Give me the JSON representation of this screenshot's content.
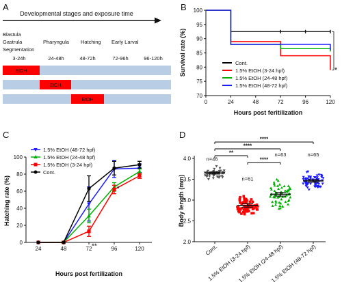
{
  "colors": {
    "control": "#000000",
    "etoh_3_24": "#ff0000",
    "etoh_24_48": "#00b000",
    "etoh_48_72": "#1a1aff",
    "row_band": "#b9cde5",
    "etoh_box": "#ff0000",
    "significance": "#000000",
    "panel_d_control_points": "#555555"
  },
  "panel_a": {
    "letter": "A",
    "arrow_label": "Developmental stages and exposure time",
    "stage_top": "Blastula",
    "stages": [
      "Gastrula",
      "Pharyngula",
      "Hatching",
      "Early Larval"
    ],
    "stage_extra": "Segmentation",
    "time_windows": [
      "3-24h",
      "24-48h",
      "48-72h",
      "72-96h",
      "96-120h"
    ],
    "rows": [
      {
        "etoh_window": 0,
        "label": "EtOH"
      },
      {
        "etoh_window": 1,
        "label": "EtOH"
      },
      {
        "etoh_window": 2,
        "label": "EtOH"
      }
    ]
  },
  "panel_b": {
    "letter": "B",
    "significance": "*",
    "legend": [
      "Cont.",
      "1.5% EtOH (3-24 hpf)",
      "1.5% EtOH (24-48 hpf)",
      "1.5% EtOH (48-72 hpf)"
    ]
  },
  "panel_c": {
    "letter": "C",
    "annotations": [
      {
        "text": "*",
        "x": 96,
        "y": 70
      },
      {
        "text": "**",
        "x": 72,
        "y": 3
      }
    ],
    "legend": [
      "1.5% EtOH (48-72 hpf)",
      "1.5% EtOH (24-48 hpf)",
      "1.5% EtOH (3-24 hpf)",
      "Cont."
    ]
  },
  "panel_d": {
    "letter": "D",
    "n_labels": [
      "n=46",
      "n=61",
      "n=63",
      "n=65"
    ],
    "significance": [
      "****",
      "****",
      "**",
      "****"
    ]
  },
  "chart_data": [
    {
      "panel": "B",
      "type": "line",
      "step": true,
      "xlabel": "Hours post feritilization",
      "ylabel": "Survival rate (%)",
      "xlim": [
        0,
        120
      ],
      "ylim": [
        70,
        100
      ],
      "xticks": [
        0,
        24,
        48,
        72,
        96,
        120
      ],
      "yticks": [
        70,
        75,
        80,
        85,
        90,
        95,
        100
      ],
      "x": [
        0,
        24,
        48,
        72,
        96,
        120
      ],
      "series": [
        {
          "name": "Cont.",
          "color_key": "control",
          "values": [
            100,
            92.5,
            92.5,
            92.5,
            92.5,
            92.5
          ]
        },
        {
          "name": "1.5% EtOH (3-24 hpf)",
          "color_key": "etoh_3_24",
          "values": [
            100,
            89,
            89,
            84,
            84,
            79
          ]
        },
        {
          "name": "1.5% EtOH (24-48 hpf)",
          "color_key": "etoh_24_48",
          "values": [
            100,
            88,
            88,
            86.5,
            86.5,
            85.5
          ]
        },
        {
          "name": "1.5% EtOH (48-72 hpf)",
          "color_key": "etoh_48_72",
          "values": [
            100,
            88,
            88,
            88,
            88,
            86
          ]
        }
      ]
    },
    {
      "panel": "C",
      "type": "line",
      "xlabel": "Hours post fertilization",
      "ylabel": "Hatching rate (%)",
      "ylim": [
        0,
        100
      ],
      "yticks": [
        0,
        20,
        40,
        60,
        80,
        100
      ],
      "categories": [
        "24",
        "48",
        "72",
        "96",
        "120"
      ],
      "series": [
        {
          "name": "1.5% EtOH (48-72 hpf)",
          "color_key": "etoh_48_72",
          "marker": "triangle-down",
          "values": [
            0,
            0,
            45,
            86,
            87
          ],
          "errors": [
            0,
            0,
            20,
            10,
            5
          ]
        },
        {
          "name": "1.5% EtOH (24-48 hpf)",
          "color_key": "etoh_24_48",
          "marker": "triangle-up",
          "values": [
            0,
            0,
            31,
            65,
            83
          ],
          "errors": [
            0,
            1,
            8,
            5,
            3
          ]
        },
        {
          "name": "1.5% EtOH (3-24 hpf)",
          "color_key": "etoh_3_24",
          "marker": "square",
          "values": [
            0,
            0,
            13,
            62,
            78
          ],
          "errors": [
            0,
            0,
            6,
            5,
            3
          ]
        },
        {
          "name": "Cont.",
          "color_key": "control",
          "marker": "circle",
          "values": [
            0,
            0,
            63,
            87,
            91
          ],
          "errors": [
            0,
            0,
            15,
            8,
            4
          ]
        }
      ]
    },
    {
      "panel": "D",
      "type": "scatter",
      "ylabel": "Body length (mm)",
      "ylim": [
        2.0,
        4.0
      ],
      "yticks": [
        2.0,
        2.5,
        3.0,
        3.5,
        4.0
      ],
      "categories": [
        "Cont.",
        "1.5% EtOH (3-24 hpf)",
        "1.5% EtOH (24-48 hpf)",
        "1.5% EtOH (48-72 hpf)"
      ],
      "series": [
        {
          "category": "Cont.",
          "color_key": "panel_d_control_points",
          "marker": "triangle-down",
          "n": 46,
          "mean": 3.65,
          "sem": 0.025,
          "spread": 0.09
        },
        {
          "category": "1.5% EtOH (3-24 hpf)",
          "color_key": "etoh_3_24",
          "marker": "square",
          "n": 61,
          "mean": 2.87,
          "sem": 0.04,
          "spread": 0.15
        },
        {
          "category": "1.5% EtOH (24-48 hpf)",
          "color_key": "etoh_24_48",
          "marker": "triangle-up",
          "n": 63,
          "mean": 3.14,
          "sem": 0.045,
          "spread": 0.22
        },
        {
          "category": "1.5% EtOH (48-72 hpf)",
          "color_key": "etoh_48_72",
          "marker": "triangle-down",
          "n": 65,
          "mean": 3.46,
          "sem": 0.03,
          "spread": 0.13
        }
      ],
      "comparisons": [
        {
          "from": 0,
          "to": 3,
          "label_index": 0
        },
        {
          "from": 0,
          "to": 2,
          "label_index": 1
        },
        {
          "from": 0,
          "to": 1,
          "label_index": 2
        },
        {
          "from": 1,
          "to": 2,
          "label_index": 3
        }
      ]
    }
  ]
}
